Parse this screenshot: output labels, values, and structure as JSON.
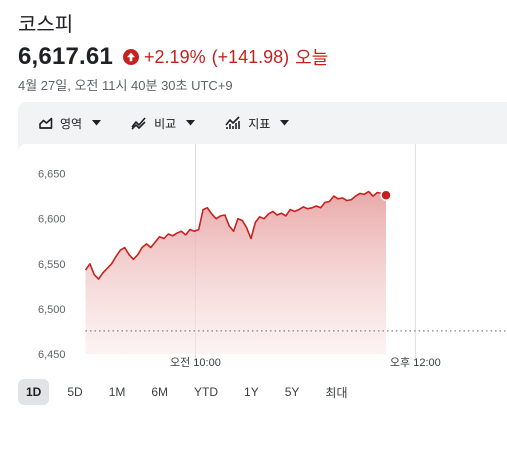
{
  "stock": {
    "name": "코스피",
    "price": "6,617.61",
    "change_pct": "+2.19%",
    "change_abs": "(+141.98)",
    "change_period": "오늘",
    "timestamp": "4월 27일, 오전 11시 40분 30초 UTC+9"
  },
  "toolbar": [
    {
      "label": "영역",
      "icon": "area-chart-icon"
    },
    {
      "label": "비교",
      "icon": "compare-icon"
    },
    {
      "label": "지표",
      "icon": "indicators-icon"
    }
  ],
  "ranges": [
    "1D",
    "5D",
    "1M",
    "6M",
    "YTD",
    "1Y",
    "5Y",
    "최대"
  ],
  "active_range": "1D",
  "colors": {
    "negative_red": "#c5221f",
    "line": "#c5221f",
    "fill_top": "#e8a5a5",
    "fill_bottom": "#fbe9e9",
    "panel_bg": "#f1f3f4",
    "grid": "#dadce0"
  },
  "chart_data": {
    "type": "area",
    "y_ticks": [
      "6,650",
      "6,600",
      "6,550",
      "6,500",
      "6,450"
    ],
    "y_tick_values": [
      6650,
      6600,
      6550,
      6500,
      6450
    ],
    "ylim": [
      6450,
      6665
    ],
    "x_ticks": [
      "오전 10:00",
      "오후 12:00"
    ],
    "x_tick_minutes": [
      60,
      180
    ],
    "xlim_minutes": [
      -3,
      188
    ],
    "x_start_minutes": 0,
    "x_end_minutes": 164,
    "previous_close": 6475.63,
    "values": [
      6543,
      6550,
      6538,
      6533,
      6540,
      6545,
      6550,
      6558,
      6565,
      6568,
      6560,
      6555,
      6560,
      6568,
      6572,
      6568,
      6574,
      6580,
      6578,
      6583,
      6581,
      6584,
      6586,
      6582,
      6588,
      6586,
      6588,
      6610,
      6612,
      6605,
      6600,
      6603,
      6604,
      6592,
      6586,
      6600,
      6598,
      6590,
      6578,
      6596,
      6602,
      6600,
      6605,
      6608,
      6604,
      6606,
      6603,
      6610,
      6608,
      6610,
      6613,
      6611,
      6612,
      6614,
      6612,
      6618,
      6619,
      6625,
      6622,
      6623,
      6620,
      6621,
      6625,
      6628,
      6627,
      6630,
      6625,
      6629,
      6628,
      6626
    ],
    "last_value": 6617.61
  }
}
